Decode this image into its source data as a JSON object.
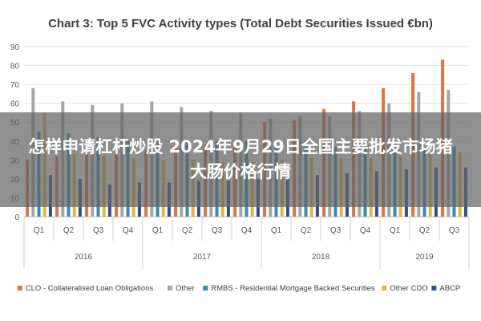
{
  "chart_data": {
    "type": "bar",
    "title": "Chart 3: Top 5 FVC Activity types (Total Debt Securities Issued €bn)",
    "xlabel": "",
    "ylabel": "",
    "ylim": [
      0,
      90
    ],
    "yticks": [
      0,
      10,
      20,
      30,
      40,
      50,
      60,
      70,
      80,
      90
    ],
    "grid": true,
    "legend_position": "bottom",
    "categories": [
      "Q1",
      "Q2",
      "Q3",
      "Q4",
      "Q1",
      "Q2",
      "Q3",
      "Q4",
      "Q1",
      "Q2",
      "Q3",
      "Q4",
      "Q1",
      "Q2",
      "Q3"
    ],
    "years": [
      {
        "label": "2016",
        "span": 4
      },
      {
        "label": "2017",
        "span": 4
      },
      {
        "label": "2018",
        "span": 4
      },
      {
        "label": "2019",
        "span": 3
      }
    ],
    "series": [
      {
        "name": "CLO - Collateralised Loan Obligations",
        "color": "#e2733a",
        "values": [
          30,
          32,
          33,
          34,
          35,
          36,
          38,
          40,
          50,
          51,
          57,
          61,
          68,
          76,
          83
        ]
      },
      {
        "name": "Other",
        "color": "#a6a6a6",
        "values": [
          68,
          61,
          59,
          60,
          61,
          58,
          56,
          55,
          52,
          53,
          53,
          56,
          60,
          66,
          67
        ]
      },
      {
        "name": "RMBS - Residential Mortgage Backed Securities",
        "color": "#2e8fb5",
        "values": [
          45,
          44,
          42,
          41,
          41,
          41,
          40,
          40,
          38,
          37,
          37,
          36,
          36,
          36,
          37
        ]
      },
      {
        "name": "Other CDO",
        "color": "#e8b82e",
        "values": [
          55,
          33,
          32,
          31,
          30,
          30,
          29,
          29,
          30,
          31,
          31,
          31,
          32,
          33,
          34
        ]
      },
      {
        "name": "ABCP",
        "color": "#2b4f92",
        "values": [
          22,
          20,
          17,
          18,
          18,
          19,
          19,
          20,
          21,
          22,
          23,
          24,
          25,
          26,
          26
        ]
      }
    ]
  },
  "overlay": {
    "text": "怎样申请杠杆炒股 2024年9月29日全国主要批发市场猪大肠价格行情"
  }
}
